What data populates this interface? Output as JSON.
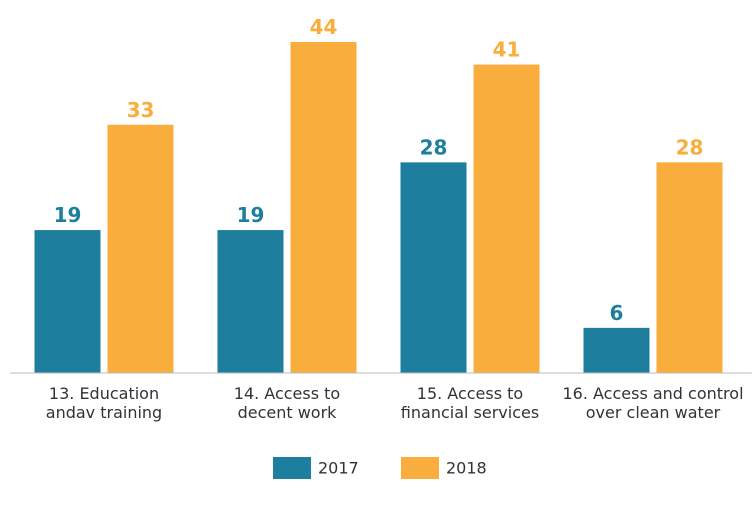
{
  "chart_data": {
    "type": "bar",
    "categories": [
      "13. Education\nandav training",
      "14. Access to\ndecent work",
      "15. Access to\nfinancial services",
      "16. Access and control\nover clean water"
    ],
    "series": [
      {
        "name": "2017",
        "color": "#1d7f9d",
        "values": [
          19,
          19,
          28,
          6
        ]
      },
      {
        "name": "2018",
        "color": "#f9ad3c",
        "values": [
          33,
          44,
          41,
          28
        ]
      }
    ]
  }
}
